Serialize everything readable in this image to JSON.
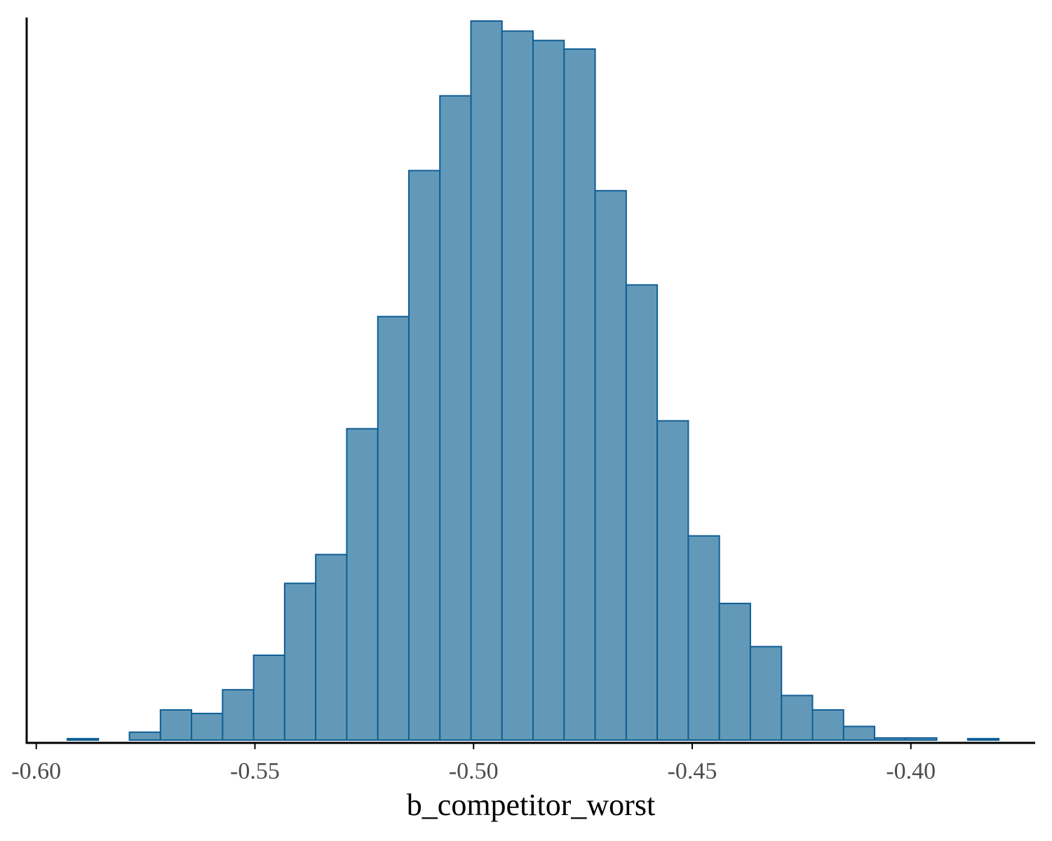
{
  "chart_data": {
    "type": "bar",
    "xlabel": "b_competitor_worst",
    "ylabel": "",
    "xlim": [
      -0.6022,
      -0.3719
    ],
    "ylim": [
      0,
      1
    ],
    "bin_edges": [
      -0.5929,
      -0.5858,
      -0.5787,
      -0.5716,
      -0.5645,
      -0.5574,
      -0.5503,
      -0.5432,
      -0.5361,
      -0.529,
      -0.5219,
      -0.5148,
      -0.5077,
      -0.5006,
      -0.4935,
      -0.4864,
      -0.4793,
      -0.4722,
      -0.4651,
      -0.458,
      -0.4509,
      -0.4438,
      -0.4367,
      -0.4296,
      -0.4225,
      -0.4154,
      -0.4083,
      -0.4012,
      -0.3941,
      -0.387,
      -0.3799
    ],
    "values": [
      0.002,
      0.0,
      0.011,
      0.042,
      0.037,
      0.07,
      0.118,
      0.218,
      0.258,
      0.433,
      0.589,
      0.792,
      0.896,
      1.0,
      0.986,
      0.973,
      0.961,
      0.764,
      0.633,
      0.444,
      0.284,
      0.19,
      0.13,
      0.062,
      0.042,
      0.019,
      0.003,
      0.003,
      0.0,
      0.002
    ],
    "xticks": [
      -0.6,
      -0.55,
      -0.5,
      -0.45,
      -0.4
    ],
    "xtick_labels": [
      "-0.60",
      "-0.55",
      "-0.50",
      "-0.45",
      "-0.40"
    ],
    "bar_fill": "#6399B8",
    "bar_edge": "#0F5E96",
    "axis_color": "#000000",
    "grid": false,
    "legend": "none"
  }
}
